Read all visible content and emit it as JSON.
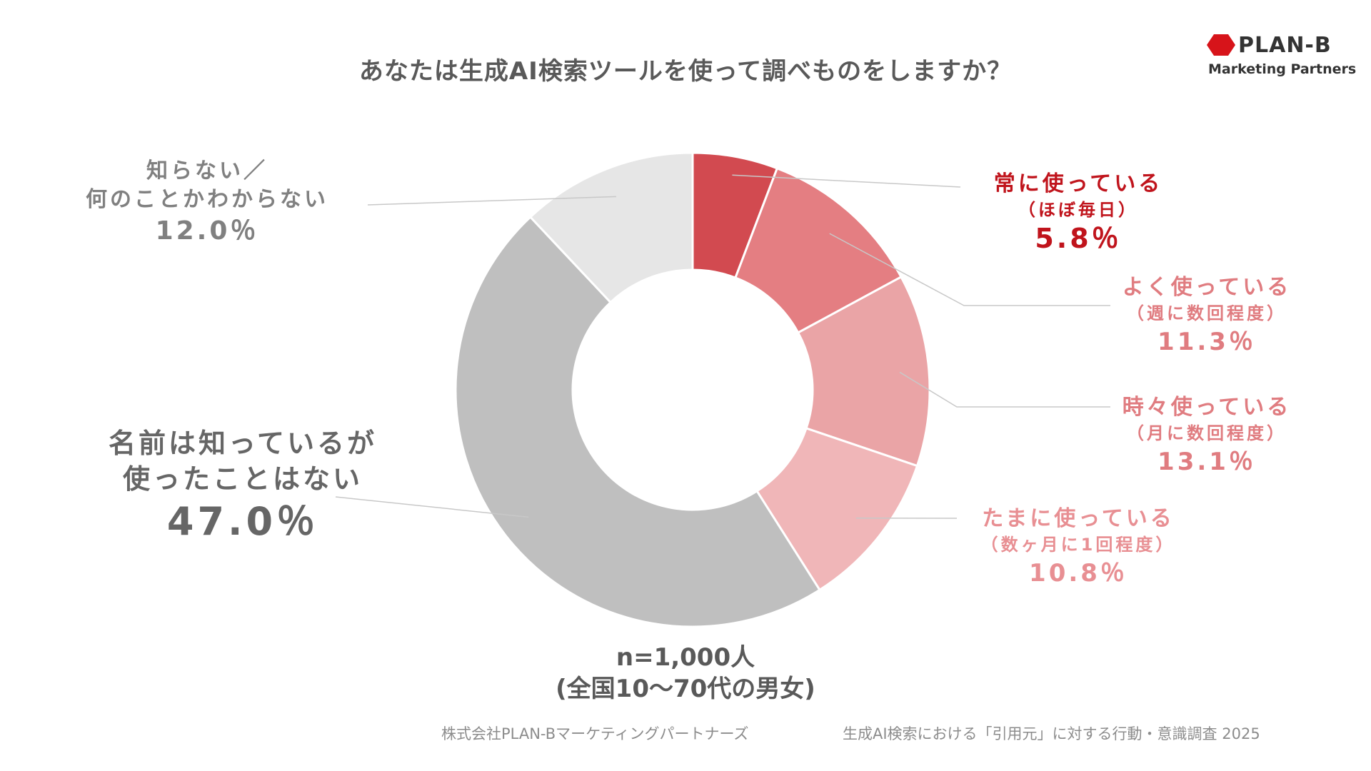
{
  "title": "あなたは生成AI検索ツールを使って調べものをしますか？",
  "logo": {
    "name": "PLAN-B",
    "subtitle": "Marketing Partners",
    "color": "#d7141a"
  },
  "chart_data": {
    "type": "pie",
    "variant": "donut",
    "title": "あなたは生成AI検索ツールを使って調べものをしますか？",
    "unit": "%",
    "segments": [
      {
        "key": "always",
        "label": "常に使っている",
        "sublabel": "（ほぼ毎日）",
        "value": 5.8,
        "display": "5.8％",
        "color": "#d24a50"
      },
      {
        "key": "often",
        "label": "よく使っている",
        "sublabel": "（週に数回程度）",
        "value": 11.3,
        "display": "11.3％",
        "color": "#e47e82"
      },
      {
        "key": "some",
        "label": "時々使っている",
        "sublabel": "（月に数回程度）",
        "value": 13.1,
        "display": "13.1％",
        "color": "#eaa4a6"
      },
      {
        "key": "rare",
        "label": "たまに使っている",
        "sublabel": "（数ヶ月に1回程度）",
        "value": 10.8,
        "display": "10.8％",
        "color": "#f0b6b8"
      },
      {
        "key": "notused",
        "label": "名前は知っているが",
        "sublabel": "使ったことはない",
        "value": 47.0,
        "display": "47.0％",
        "color": "#bfbfbf"
      },
      {
        "key": "unknown",
        "label": "知らない／",
        "sublabel": "何のことかわからない",
        "value": 12.0,
        "display": "12.0％",
        "color": "#e6e6e6"
      }
    ],
    "sample": {
      "n": "n=1,000人",
      "population": "(全国10〜70代の男女)"
    }
  },
  "footer": {
    "company": "株式会社PLAN-Bマーケティングパートナーズ",
    "survey": "生成AI検索における「引用元」に対する行動・意識調査 2025"
  }
}
